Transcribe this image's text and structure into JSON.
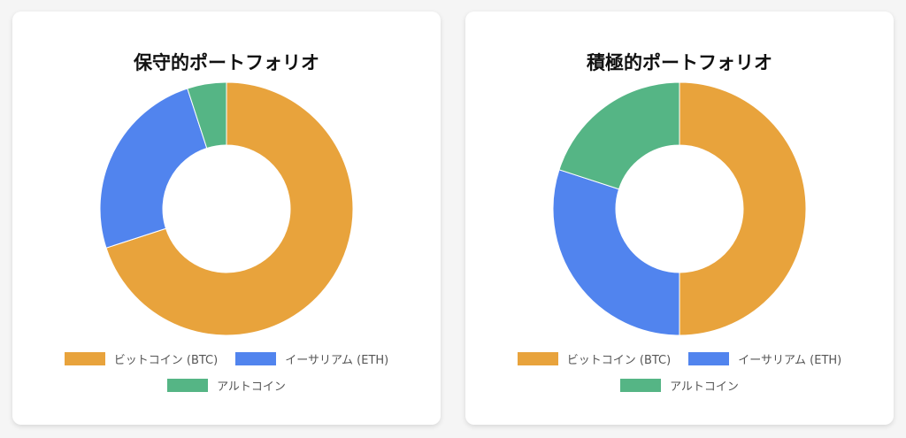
{
  "colors": {
    "btc": "#e8a33c",
    "eth": "#5184ee",
    "alt": "#55b585"
  },
  "legend_labels": {
    "btc": "ビットコイン (BTC)",
    "eth": "イーサリアム (ETH)",
    "alt": "アルトコイン"
  },
  "chart_data": [
    {
      "type": "pie",
      "variant": "doughnut",
      "title": "保守的ポートフォリオ",
      "categories": [
        "ビットコイン (BTC)",
        "イーサリアム (ETH)",
        "アルトコイン"
      ],
      "values": [
        70,
        25,
        5
      ],
      "legend_position": "bottom"
    },
    {
      "type": "pie",
      "variant": "doughnut",
      "title": "積極的ポートフォリオ",
      "categories": [
        "ビットコイン (BTC)",
        "イーサリアム (ETH)",
        "アルトコイン"
      ],
      "values": [
        50,
        30,
        20
      ],
      "legend_position": "bottom"
    }
  ]
}
